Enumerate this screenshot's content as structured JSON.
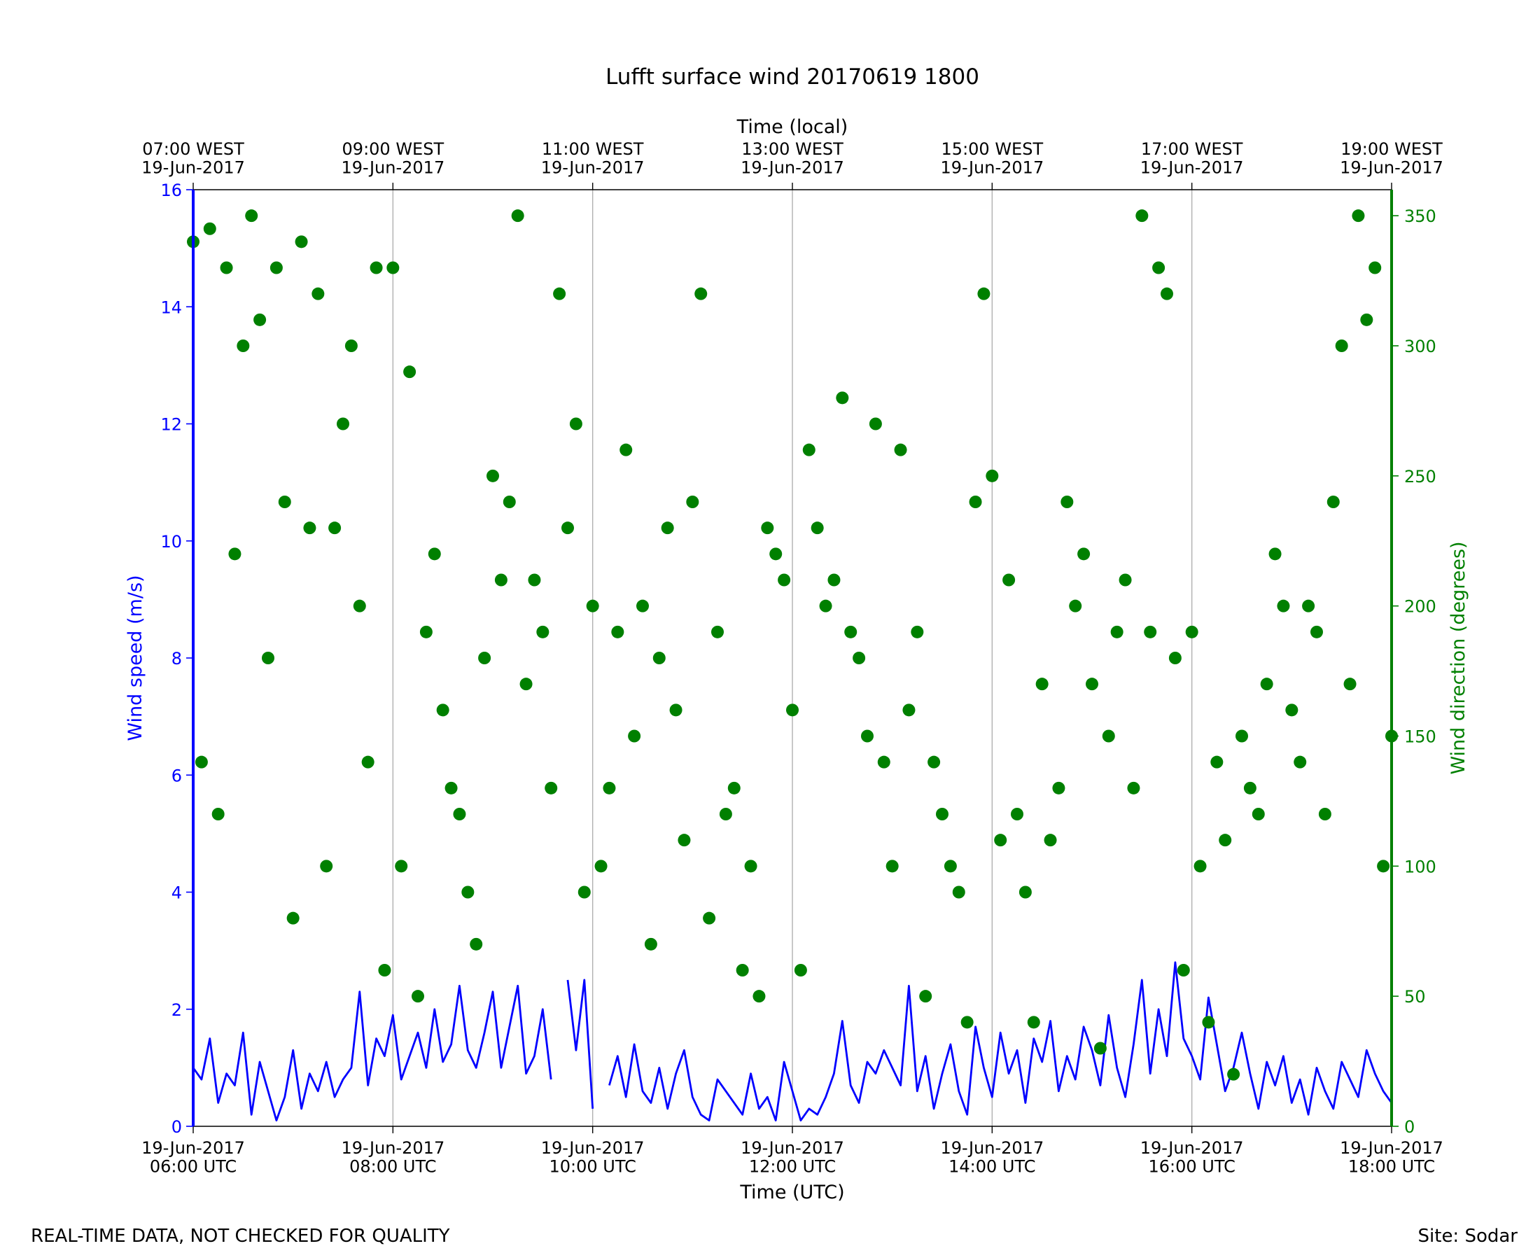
{
  "chart_data": {
    "type": "line",
    "title": "Lufft surface wind 20170619 1800",
    "x_label": "Time (UTC)",
    "x2_label": "Time (local)",
    "y_label": "Wind speed (m/s)",
    "y2_label": "Wind direction (degrees)",
    "footer_left": "REAL-TIME DATA, NOT CHECKED FOR QUALITY",
    "footer_right": "Site: Sodar",
    "xlim": [
      "06:00",
      "18:00"
    ],
    "xticks": [
      {
        "value": "06:00",
        "label": "19-Jun-2017\n06:00 UTC"
      },
      {
        "value": "08:00",
        "label": "19-Jun-2017\n08:00 UTC"
      },
      {
        "value": "10:00",
        "label": "19-Jun-2017\n10:00 UTC"
      },
      {
        "value": "12:00",
        "label": "19-Jun-2017\n12:00 UTC"
      },
      {
        "value": "14:00",
        "label": "19-Jun-2017\n14:00 UTC"
      },
      {
        "value": "16:00",
        "label": "19-Jun-2017\n16:00 UTC"
      },
      {
        "value": "18:00",
        "label": "19-Jun-2017\n18:00 UTC"
      }
    ],
    "x2ticks": [
      {
        "value": "06:00",
        "label": "07:00 WEST\n19-Jun-2017"
      },
      {
        "value": "08:00",
        "label": "09:00 WEST\n19-Jun-2017"
      },
      {
        "value": "10:00",
        "label": "11:00 WEST\n19-Jun-2017"
      },
      {
        "value": "12:00",
        "label": "13:00 WEST\n19-Jun-2017"
      },
      {
        "value": "14:00",
        "label": "15:00 WEST\n19-Jun-2017"
      },
      {
        "value": "16:00",
        "label": "17:00 WEST\n19-Jun-2017"
      },
      {
        "value": "18:00",
        "label": "19:00 WEST\n19-Jun-2017"
      }
    ],
    "ylim": [
      0,
      16
    ],
    "yticks": [
      0,
      2,
      4,
      6,
      8,
      10,
      12,
      14,
      16
    ],
    "y2lim": [
      0,
      360
    ],
    "y2ticks": [
      0,
      50,
      100,
      150,
      200,
      250,
      300,
      350
    ],
    "grid": true,
    "x": [
      "06:00",
      "06:05",
      "06:10",
      "06:15",
      "06:20",
      "06:25",
      "06:30",
      "06:35",
      "06:40",
      "06:45",
      "06:50",
      "06:55",
      "07:00",
      "07:05",
      "07:10",
      "07:15",
      "07:20",
      "07:25",
      "07:30",
      "07:35",
      "07:40",
      "07:45",
      "07:50",
      "07:55",
      "08:00",
      "08:05",
      "08:10",
      "08:15",
      "08:20",
      "08:25",
      "08:30",
      "08:35",
      "08:40",
      "08:45",
      "08:50",
      "08:55",
      "09:00",
      "09:05",
      "09:10",
      "09:15",
      "09:20",
      "09:25",
      "09:30",
      "09:35",
      "09:40",
      "09:45",
      "09:50",
      "09:55",
      "10:00",
      "10:05",
      "10:10",
      "10:15",
      "10:20",
      "10:25",
      "10:30",
      "10:35",
      "10:40",
      "10:45",
      "10:50",
      "10:55",
      "11:00",
      "11:05",
      "11:10",
      "11:15",
      "11:20",
      "11:25",
      "11:30",
      "11:35",
      "11:40",
      "11:45",
      "11:50",
      "11:55",
      "12:00",
      "12:05",
      "12:10",
      "12:15",
      "12:20",
      "12:25",
      "12:30",
      "12:35",
      "12:40",
      "12:45",
      "12:50",
      "12:55",
      "13:00",
      "13:05",
      "13:10",
      "13:15",
      "13:20",
      "13:25",
      "13:30",
      "13:35",
      "13:40",
      "13:45",
      "13:50",
      "13:55",
      "14:00",
      "14:05",
      "14:10",
      "14:15",
      "14:20",
      "14:25",
      "14:30",
      "14:35",
      "14:40",
      "14:45",
      "14:50",
      "14:55",
      "15:00",
      "15:05",
      "15:10",
      "15:15",
      "15:20",
      "15:25",
      "15:30",
      "15:35",
      "15:40",
      "15:45",
      "15:50",
      "15:55",
      "16:00",
      "16:05",
      "16:10",
      "16:15",
      "16:20",
      "16:25",
      "16:30",
      "16:35",
      "16:40",
      "16:45",
      "16:50",
      "16:55",
      "17:00",
      "17:05",
      "17:10",
      "17:15",
      "17:20",
      "17:25",
      "17:30",
      "17:35",
      "17:40",
      "17:45",
      "17:50",
      "17:55",
      "18:00"
    ],
    "series": [
      {
        "name": "Wind speed",
        "type": "line",
        "color": "#0000ff",
        "values": [
          1.0,
          0.8,
          1.5,
          0.4,
          0.9,
          0.7,
          1.6,
          0.2,
          1.1,
          0.6,
          0.1,
          0.5,
          1.3,
          0.3,
          0.9,
          0.6,
          1.1,
          0.5,
          0.8,
          1.0,
          2.3,
          0.7,
          1.5,
          1.2,
          1.9,
          0.8,
          1.2,
          1.6,
          1.0,
          2.0,
          1.1,
          1.4,
          2.4,
          1.3,
          1.0,
          1.6,
          2.3,
          1.0,
          1.7,
          2.4,
          0.9,
          1.2,
          2.0,
          0.8,
          null,
          2.5,
          1.3,
          2.5,
          0.3,
          null,
          0.7,
          1.2,
          0.5,
          1.4,
          0.6,
          0.4,
          1.0,
          0.3,
          0.9,
          1.3,
          0.5,
          0.2,
          0.1,
          0.8,
          0.6,
          0.4,
          0.2,
          0.9,
          0.3,
          0.5,
          0.1,
          1.1,
          0.6,
          0.1,
          0.3,
          0.2,
          0.5,
          0.9,
          1.8,
          0.7,
          0.4,
          1.1,
          0.9,
          1.3,
          1.0,
          0.7,
          2.4,
          0.6,
          1.2,
          0.3,
          0.9,
          1.4,
          0.6,
          0.2,
          1.7,
          1.0,
          0.5,
          1.6,
          0.9,
          1.3,
          0.4,
          1.5,
          1.1,
          1.8,
          0.6,
          1.2,
          0.8,
          1.7,
          1.3,
          0.7,
          1.9,
          1.0,
          0.5,
          1.4,
          2.5,
          0.9,
          2.0,
          1.2,
          2.8,
          1.5,
          1.2,
          0.8,
          2.2,
          1.4,
          0.6,
          1.0,
          1.6,
          0.9,
          0.3,
          1.1,
          0.7,
          1.2,
          0.4,
          0.8,
          0.2,
          1.0,
          0.6,
          0.3,
          1.1,
          0.8,
          0.5,
          1.3,
          0.9,
          0.6,
          0.4
        ]
      },
      {
        "name": "Wind direction",
        "type": "scatter",
        "axis": "y2",
        "color": "#008000",
        "values": [
          340,
          140,
          345,
          120,
          330,
          220,
          300,
          350,
          310,
          180,
          330,
          240,
          80,
          340,
          230,
          320,
          100,
          230,
          270,
          300,
          200,
          140,
          330,
          60,
          330,
          100,
          290,
          50,
          190,
          220,
          160,
          130,
          120,
          90,
          70,
          180,
          250,
          210,
          240,
          350,
          170,
          210,
          190,
          130,
          320,
          230,
          270,
          90,
          200,
          100,
          130,
          190,
          260,
          150,
          200,
          70,
          180,
          230,
          160,
          110,
          240,
          320,
          80,
          190,
          120,
          130,
          60,
          100,
          50,
          230,
          220,
          210,
          160,
          60,
          260,
          230,
          200,
          210,
          280,
          190,
          180,
          150,
          270,
          140,
          100,
          260,
          160,
          190,
          50,
          140,
          120,
          100,
          90,
          40,
          240,
          320,
          250,
          110,
          210,
          120,
          90,
          40,
          170,
          110,
          130,
          240,
          200,
          220,
          170,
          30,
          150,
          190,
          210,
          130,
          350,
          190,
          330,
          320,
          180,
          60,
          190,
          100,
          40,
          140,
          110,
          20,
          150,
          130,
          120,
          170,
          220,
          200,
          160,
          140,
          200,
          190,
          120,
          240,
          300,
          170,
          350,
          310,
          330,
          100,
          150
        ]
      }
    ]
  }
}
